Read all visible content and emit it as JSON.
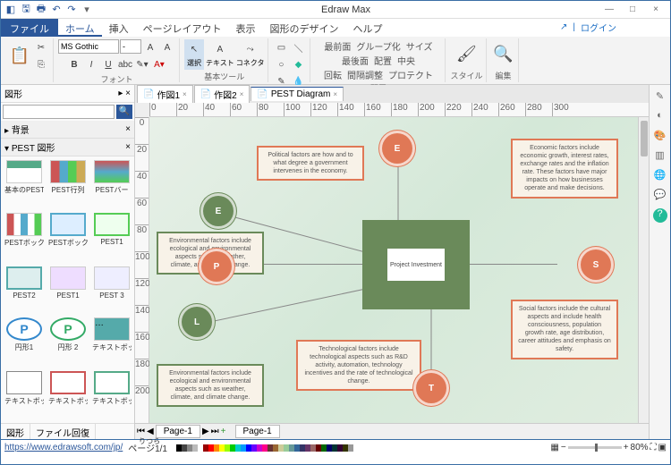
{
  "app": {
    "title": "Edraw Max"
  },
  "winbtns": {
    "min": "—",
    "max": "□",
    "close": "×"
  },
  "qat": [
    "◧",
    "🖫",
    "🖶",
    "↶",
    "↷",
    "▾"
  ],
  "loginbar": {
    "sep": "|",
    "login": "ログイン",
    "icon": "↗"
  },
  "menu": {
    "file": "ファイル",
    "tabs": [
      "ホーム",
      "挿入",
      "ページレイアウト",
      "表示",
      "図形のデザイン",
      "ヘルプ"
    ]
  },
  "ribbon": {
    "font": {
      "name": "MS Gothic",
      "size": "-",
      "label": "フォント"
    },
    "tools": {
      "select": "選択",
      "text": "テキスト",
      "conn": "コネクタ",
      "label": "基本ツール"
    },
    "arrange": {
      "label": "配置",
      "items": [
        "最前面",
        "グループ化",
        "サイズ",
        "最後面",
        "配置",
        "中央",
        "回転",
        "間隔調整",
        "プロテクト"
      ]
    },
    "style": {
      "label": "スタイル"
    },
    "edit": {
      "label": "編集"
    }
  },
  "leftpanel": {
    "title": "図形",
    "more": "▸",
    "close": "×",
    "search_ph": "",
    "sec1": "背景",
    "sec2": "PEST 図形",
    "shapes": [
      "基本のPEST",
      "PEST行列",
      "PESTバー",
      "PESTボックス",
      "PESTボックス",
      "PEST1",
      "PEST2",
      "PEST1",
      "PEST 3",
      "円形1",
      "円形 2",
      "テキストボッ…",
      "テキストボッ…",
      "テキストボッ…",
      "テキストボッ…"
    ],
    "footer": [
      "図形",
      "ファイル回復"
    ]
  },
  "doctabs": [
    {
      "icon": "📄",
      "label": "作図1",
      "active": false
    },
    {
      "icon": "📄",
      "label": "作図2",
      "active": false
    },
    {
      "icon": "📄",
      "label": "PEST Diagram",
      "active": true
    }
  ],
  "ruler_h": [
    "0",
    "20",
    "40",
    "60",
    "80",
    "100",
    "120",
    "140",
    "160",
    "180",
    "200",
    "220",
    "240",
    "260",
    "280",
    "300"
  ],
  "ruler_v": [
    "0",
    "20",
    "40",
    "60",
    "80",
    "100",
    "120",
    "140",
    "160",
    "180",
    "200"
  ],
  "pest": {
    "center": "Project Investment",
    "E": "E",
    "S": "S",
    "T": "T",
    "P": "P",
    "Env": "E",
    "L": "L",
    "t_pol": "Political factors are how and to what degree a government intervenes in the economy.",
    "t_econ": "Economic factors include economic growth, interest rates, exchange rates and the inflation rate. These factors have major impacts on how businesses operate and make decisions.",
    "t_env": "Environmental factors include ecological and environmental aspects such as weather, climate, and climate change.",
    "t_soc": "Social factors include the cultural aspects and include health consciousness, population growth rate, age distribution, career attitudes and emphasis on safety.",
    "t_tech": "Technological factors include technological aspects such as R&D activity, automation, technology incentives and the rate of technological change.",
    "t_leg": "Environmental factors include ecological and environmental aspects such as weather, climate, and climate change."
  },
  "pagetabs": {
    "nav": [
      "⏮",
      "◀",
      "▶",
      "⏭",
      "+"
    ],
    "p1": "Page-1",
    "p2": "Page-1",
    "extra": "りつら"
  },
  "rightbar_icons": [
    "✎",
    "◐",
    "🎨",
    "▥",
    "🌐",
    "💬",
    "?"
  ],
  "status": {
    "url": "https://www.edrawsoft.com/jp/",
    "page": "ページ1/1",
    "zoom": "80%"
  },
  "palette": [
    "#000",
    "#444",
    "#888",
    "#bbb",
    "#fff",
    "#900",
    "#f00",
    "#f80",
    "#ff0",
    "#9f0",
    "#0c0",
    "#0cc",
    "#09f",
    "#00f",
    "#60f",
    "#c0c",
    "#f08",
    "#633",
    "#963",
    "#cc9",
    "#9c9",
    "#699",
    "#369",
    "#336",
    "#636",
    "#966",
    "#600",
    "#060",
    "#006",
    "#033",
    "#303",
    "#330",
    "#999"
  ]
}
